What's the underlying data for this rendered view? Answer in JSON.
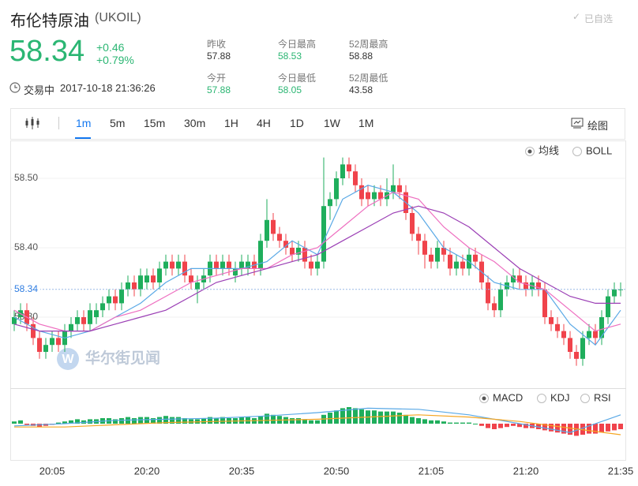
{
  "header": {
    "name": "布伦特原油",
    "symbol": "(UKOIL)",
    "price": "58.34",
    "change": "+0.46",
    "change_pct": "+0.79%",
    "status": "交易中",
    "time": "2017-10-18 21:36:26",
    "watch": "已自选",
    "stats": [
      {
        "label": "昨收",
        "value": "57.88"
      },
      {
        "label": "今日最高",
        "value": "58.53"
      },
      {
        "label": "52周最高",
        "value": "58.88"
      },
      {
        "label": "今开",
        "value": "57.88"
      },
      {
        "label": "今日最低",
        "value": "58.05"
      },
      {
        "label": "52周最低",
        "value": "43.58"
      }
    ]
  },
  "toolbar": {
    "intervals": [
      "1m",
      "5m",
      "15m",
      "30m",
      "1H",
      "4H",
      "1D",
      "1W",
      "1M"
    ],
    "draw": "绘图"
  },
  "chart_data": {
    "type": "candlestick",
    "up_color": "#1fae5c",
    "down_color": "#f0434b",
    "ylim": [
      58.2,
      58.55
    ],
    "yticks": [
      {
        "value": 58.3,
        "label": "58.30"
      },
      {
        "value": 58.4,
        "label": "58.40"
      },
      {
        "value": 58.5,
        "label": "58.50"
      }
    ],
    "grid": true,
    "current_price": 58.34,
    "xticks": [
      {
        "value": 6,
        "label": "20:05"
      },
      {
        "value": 21,
        "label": "20:20"
      },
      {
        "value": 36,
        "label": "20:35"
      },
      {
        "value": 51,
        "label": "20:50"
      },
      {
        "value": 66,
        "label": "21:05"
      },
      {
        "value": 81,
        "label": "21:20"
      },
      {
        "value": 96,
        "label": "21:35"
      }
    ],
    "open": [
      58.29,
      58.3,
      58.31,
      58.29,
      58.27,
      58.25,
      58.26,
      58.27,
      58.26,
      58.28,
      58.29,
      58.3,
      58.29,
      58.3,
      58.31,
      58.32,
      58.33,
      58.32,
      58.34,
      58.35,
      58.34,
      58.35,
      58.36,
      58.35,
      58.37,
      58.38,
      58.37,
      58.38,
      58.36,
      58.34,
      58.35,
      58.36,
      58.38,
      58.37,
      58.38,
      58.36,
      58.37,
      58.37,
      58.38,
      58.37,
      58.41,
      58.44,
      58.42,
      58.41,
      58.4,
      58.39,
      58.4,
      58.38,
      58.37,
      58.38,
      58.46,
      58.47,
      58.5,
      58.52,
      58.51,
      58.49,
      58.48,
      58.47,
      58.48,
      58.47,
      58.48,
      58.49,
      58.48,
      58.45,
      58.42,
      58.41,
      58.39,
      58.38,
      58.4,
      58.39,
      58.37,
      58.38,
      58.37,
      58.39,
      58.38,
      58.35,
      58.32,
      58.31,
      58.34,
      58.35,
      58.36,
      58.35,
      58.34,
      58.35,
      58.34,
      58.3,
      58.29,
      58.28,
      58.27,
      58.25,
      58.24,
      58.27,
      58.28,
      58.27,
      58.3,
      58.33,
      58.34
    ],
    "high": [
      58.31,
      58.32,
      58.32,
      58.3,
      58.28,
      58.27,
      58.28,
      58.28,
      58.29,
      58.3,
      58.31,
      58.31,
      58.32,
      58.32,
      58.33,
      58.34,
      58.34,
      58.35,
      58.36,
      58.36,
      58.37,
      58.37,
      58.37,
      58.38,
      58.39,
      58.39,
      58.39,
      58.39,
      58.37,
      58.36,
      58.37,
      58.39,
      58.39,
      58.39,
      58.39,
      58.38,
      58.39,
      58.39,
      58.39,
      58.42,
      58.47,
      58.45,
      58.43,
      58.42,
      58.41,
      58.41,
      58.41,
      58.39,
      58.39,
      58.53,
      58.48,
      58.51,
      58.53,
      58.53,
      58.52,
      58.5,
      58.49,
      58.49,
      58.49,
      58.5,
      58.52,
      58.5,
      58.49,
      58.46,
      58.43,
      58.42,
      58.4,
      58.41,
      58.41,
      58.4,
      58.39,
      58.39,
      58.4,
      58.4,
      58.39,
      58.36,
      58.33,
      58.35,
      58.36,
      58.37,
      58.37,
      58.36,
      58.36,
      58.36,
      58.35,
      58.31,
      58.3,
      58.29,
      58.28,
      58.26,
      58.28,
      58.29,
      58.29,
      58.31,
      58.34,
      58.35,
      58.35
    ],
    "low": [
      58.28,
      58.29,
      58.28,
      58.26,
      58.24,
      58.24,
      58.25,
      58.25,
      58.25,
      58.27,
      58.28,
      58.28,
      58.28,
      58.29,
      58.3,
      58.31,
      58.31,
      58.31,
      58.33,
      58.33,
      58.33,
      58.34,
      58.34,
      58.34,
      58.36,
      58.36,
      58.36,
      58.35,
      58.34,
      58.32,
      58.34,
      58.35,
      58.36,
      58.36,
      58.36,
      58.35,
      58.36,
      58.36,
      58.36,
      58.36,
      58.4,
      58.41,
      58.4,
      58.39,
      58.38,
      58.38,
      58.37,
      58.36,
      58.36,
      58.37,
      58.44,
      58.46,
      58.49,
      58.5,
      58.48,
      58.46,
      58.46,
      58.46,
      58.46,
      58.46,
      58.47,
      58.47,
      58.44,
      58.41,
      58.39,
      58.37,
      58.37,
      58.37,
      58.38,
      58.36,
      58.36,
      58.36,
      58.36,
      58.37,
      58.34,
      58.31,
      58.3,
      58.3,
      58.33,
      58.34,
      58.34,
      58.33,
      58.33,
      58.33,
      58.29,
      58.28,
      58.27,
      58.26,
      58.24,
      58.23,
      58.23,
      58.26,
      58.26,
      58.26,
      58.29,
      58.32,
      58.33
    ],
    "close": [
      58.3,
      58.31,
      58.29,
      58.27,
      58.25,
      58.26,
      58.27,
      58.26,
      58.28,
      58.29,
      58.3,
      58.29,
      58.31,
      58.31,
      58.32,
      58.33,
      58.32,
      58.34,
      58.35,
      58.34,
      58.36,
      58.36,
      58.35,
      58.37,
      58.38,
      58.37,
      58.38,
      58.36,
      58.35,
      58.35,
      58.36,
      58.38,
      58.37,
      58.38,
      58.37,
      58.37,
      58.38,
      58.38,
      58.37,
      58.41,
      58.44,
      58.42,
      58.41,
      58.4,
      58.39,
      58.4,
      58.38,
      58.37,
      58.38,
      58.46,
      58.47,
      58.5,
      58.52,
      58.51,
      58.49,
      58.47,
      58.47,
      58.48,
      58.47,
      58.48,
      58.49,
      58.48,
      58.45,
      58.42,
      58.41,
      58.39,
      58.38,
      58.4,
      58.39,
      58.37,
      58.38,
      58.37,
      58.39,
      58.38,
      58.35,
      58.32,
      58.31,
      58.34,
      58.35,
      58.36,
      58.35,
      58.34,
      58.35,
      58.34,
      58.3,
      58.29,
      58.28,
      58.27,
      58.25,
      58.24,
      58.27,
      58.28,
      58.27,
      58.3,
      58.33,
      58.34,
      58.34
    ],
    "overlay_lines": [
      {
        "color": "#5aa9e6",
        "x": [
          0,
          4,
          8,
          12,
          16,
          20,
          24,
          28,
          32,
          36,
          40,
          44,
          48,
          52,
          56,
          60,
          64,
          68,
          72,
          76,
          80,
          84,
          88,
          92,
          96
        ],
        "values": [
          58.3,
          58.28,
          58.27,
          58.28,
          58.3,
          58.32,
          58.35,
          58.37,
          58.37,
          58.37,
          58.38,
          58.41,
          58.39,
          58.47,
          58.49,
          58.48,
          58.45,
          58.4,
          58.38,
          58.35,
          58.34,
          58.34,
          58.29,
          58.26,
          58.31
        ]
      },
      {
        "color": "#ee6fc0",
        "x": [
          0,
          4,
          8,
          12,
          16,
          20,
          24,
          28,
          32,
          36,
          40,
          44,
          48,
          52,
          56,
          60,
          64,
          68,
          72,
          76,
          80,
          84,
          88,
          92,
          96
        ],
        "values": [
          58.31,
          58.29,
          58.28,
          58.28,
          58.3,
          58.31,
          58.33,
          58.35,
          58.36,
          58.37,
          58.37,
          58.39,
          58.4,
          58.43,
          58.46,
          58.48,
          58.47,
          58.43,
          58.4,
          58.38,
          58.35,
          58.34,
          58.31,
          58.28,
          58.29
        ]
      },
      {
        "color": "#9b3fb5",
        "x": [
          0,
          4,
          8,
          12,
          16,
          20,
          24,
          28,
          32,
          36,
          40,
          44,
          48,
          52,
          56,
          60,
          64,
          68,
          72,
          76,
          80,
          84,
          88,
          92,
          96
        ],
        "values": [
          58.29,
          58.28,
          58.28,
          58.28,
          58.29,
          58.3,
          58.31,
          58.33,
          58.35,
          58.36,
          58.37,
          58.38,
          58.39,
          58.41,
          58.43,
          58.45,
          58.46,
          58.45,
          58.43,
          58.4,
          58.37,
          58.35,
          58.33,
          58.32,
          58.32
        ]
      }
    ],
    "overlays": [
      "均线",
      "BOLL"
    ],
    "indicators": [
      "MACD",
      "KDJ",
      "RSI"
    ],
    "macd": {
      "ylim": [
        -0.03,
        0.03
      ],
      "histogram": [
        0.002,
        0.003,
        -0.001,
        -0.002,
        -0.003,
        -0.002,
        -0.001,
        0.001,
        0.002,
        0.003,
        0.004,
        0.003,
        0.004,
        0.004,
        0.005,
        0.005,
        0.004,
        0.005,
        0.006,
        0.005,
        0.006,
        0.006,
        0.005,
        0.006,
        0.007,
        0.006,
        0.006,
        0.005,
        0.004,
        0.004,
        0.005,
        0.006,
        0.005,
        0.006,
        0.005,
        0.005,
        0.006,
        0.006,
        0.005,
        0.007,
        0.009,
        0.008,
        0.007,
        0.006,
        0.005,
        0.005,
        0.004,
        0.003,
        0.003,
        0.008,
        0.01,
        0.012,
        0.014,
        0.015,
        0.014,
        0.013,
        0.012,
        0.012,
        0.011,
        0.011,
        0.011,
        0.01,
        0.008,
        0.006,
        0.005,
        0.004,
        0.003,
        0.003,
        0.002,
        0.001,
        0.001,
        0.001,
        0.001,
        0,
        -0.002,
        -0.004,
        -0.005,
        -0.004,
        -0.003,
        -0.002,
        -0.003,
        -0.004,
        -0.004,
        -0.005,
        -0.006,
        -0.007,
        -0.008,
        -0.009,
        -0.01,
        -0.011,
        -0.01,
        -0.009,
        -0.009,
        -0.008,
        -0.007,
        -0.006,
        -0.005
      ],
      "lines": [
        {
          "color": "#5aa9e6",
          "x": [
            0,
            8,
            16,
            24,
            32,
            40,
            48,
            56,
            64,
            72,
            80,
            88,
            96
          ],
          "values": [
            -0.002,
            0.0,
            0.003,
            0.004,
            0.005,
            0.007,
            0.01,
            0.014,
            0.013,
            0.008,
            0.0,
            -0.008,
            0.008
          ]
        },
        {
          "color": "#f5a623",
          "x": [
            0,
            8,
            16,
            24,
            32,
            40,
            48,
            56,
            64,
            72,
            80,
            88,
            96
          ],
          "values": [
            -0.003,
            -0.003,
            -0.001,
            0.001,
            0.002,
            0.003,
            0.004,
            0.006,
            0.008,
            0.006,
            0.002,
            -0.004,
            -0.01
          ]
        }
      ]
    },
    "watermark": "华尔街见闻"
  }
}
